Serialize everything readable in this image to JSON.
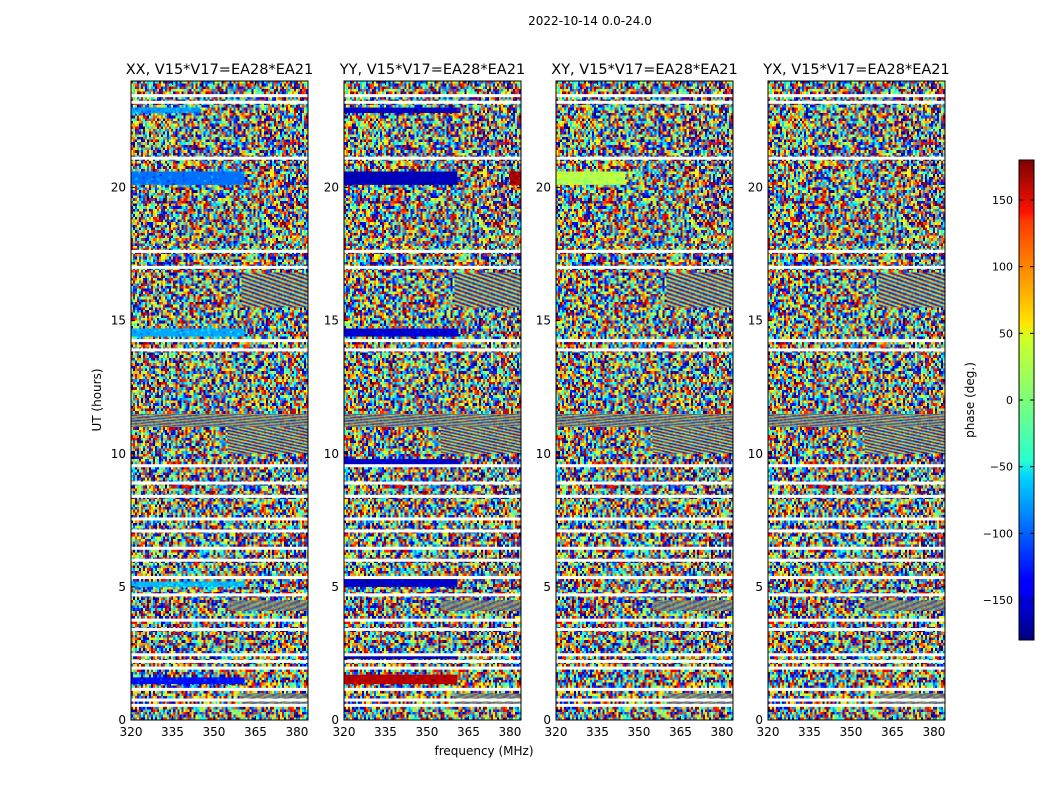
{
  "figure": {
    "suptitle": "2022-10-14 0.0-24.0"
  },
  "chart_data": {
    "type": "heatmap",
    "quantity": "visibility phase vs time and frequency",
    "xlabel": "frequency (MHz)",
    "ylabel": "UT (hours)",
    "xlim": [
      320,
      384
    ],
    "ylim": [
      0,
      24
    ],
    "xticks": [
      320,
      335,
      350,
      365,
      380
    ],
    "yticks": [
      0,
      5,
      10,
      15,
      20
    ],
    "colorbar": {
      "label": "phase (deg.)",
      "range": [
        -180,
        180
      ],
      "ticks": [
        -150,
        -100,
        -50,
        0,
        50,
        100,
        150
      ],
      "colormap": "jet"
    },
    "panels": [
      {
        "title": "XX, V15*V17=EA28*EA21"
      },
      {
        "title": "YY, V15*V17=EA28*EA21"
      },
      {
        "title": "XY, V15*V17=EA28*EA21"
      },
      {
        "title": "YX, V15*V17=EA28*EA21"
      }
    ],
    "coherent_bands": [
      {
        "panel": 0,
        "t_start": 20.1,
        "t_end": 20.6,
        "f_start": 320,
        "f_end": 361,
        "phase": -95
      },
      {
        "panel": 0,
        "t_start": 14.4,
        "t_end": 14.7,
        "f_start": 320,
        "f_end": 361,
        "phase": -75
      },
      {
        "panel": 0,
        "t_start": 5.0,
        "t_end": 5.2,
        "f_start": 320,
        "f_end": 361,
        "phase": -70
      },
      {
        "panel": 0,
        "t_start": 1.35,
        "t_end": 1.6,
        "f_start": 320,
        "f_end": 361,
        "phase": -130
      },
      {
        "panel": 0,
        "t_start": 22.8,
        "t_end": 23.0,
        "f_start": 320,
        "f_end": 345,
        "phase": -80
      },
      {
        "panel": 1,
        "t_start": 20.1,
        "t_end": 20.6,
        "f_start": 320,
        "f_end": 361,
        "phase": -160
      },
      {
        "panel": 1,
        "t_start": 20.1,
        "t_end": 20.6,
        "f_start": 380,
        "f_end": 384,
        "phase": 165
      },
      {
        "panel": 1,
        "t_start": 14.4,
        "t_end": 14.7,
        "f_start": 320,
        "f_end": 361,
        "phase": -150
      },
      {
        "panel": 1,
        "t_start": 9.6,
        "t_end": 9.8,
        "f_start": 320,
        "f_end": 361,
        "phase": -155
      },
      {
        "panel": 1,
        "t_start": 5.0,
        "t_end": 5.3,
        "f_start": 320,
        "f_end": 361,
        "phase": -155
      },
      {
        "panel": 1,
        "t_start": 2.3,
        "t_end": 2.5,
        "f_start": 320,
        "f_end": 361,
        "phase": -160
      },
      {
        "panel": 1,
        "t_start": 1.35,
        "t_end": 1.7,
        "f_start": 320,
        "f_end": 361,
        "phase": 160
      },
      {
        "panel": 1,
        "t_start": 22.8,
        "t_end": 23.0,
        "f_start": 320,
        "f_end": 361,
        "phase": -155
      },
      {
        "panel": 2,
        "t_start": 20.1,
        "t_end": 20.6,
        "f_start": 320,
        "f_end": 345,
        "phase": 20
      }
    ],
    "fringe_segments": [
      {
        "t_start": 15.5,
        "t_end": 16.8,
        "f_start": 360,
        "f_end": 384
      },
      {
        "t_start": 10.0,
        "t_end": 11.0,
        "f_start": 355,
        "f_end": 384
      },
      {
        "t_start": 11.0,
        "t_end": 11.5,
        "f_start": 320,
        "f_end": 384
      },
      {
        "t_start": 4.1,
        "t_end": 4.5,
        "f_start": 355,
        "f_end": 384
      },
      {
        "t_start": 0.6,
        "t_end": 1.0,
        "f_start": 360,
        "f_end": 384
      }
    ],
    "flagged_gaps_hours": [
      0.55,
      0.75,
      1.15,
      1.95,
      2.2,
      2.45,
      3.4,
      3.75,
      4.7,
      5.35,
      6.0,
      6.45,
      7.1,
      7.55,
      8.4,
      8.9,
      9.55,
      13.9,
      14.25,
      17.0,
      17.6,
      21.1,
      23.2,
      23.45
    ]
  }
}
